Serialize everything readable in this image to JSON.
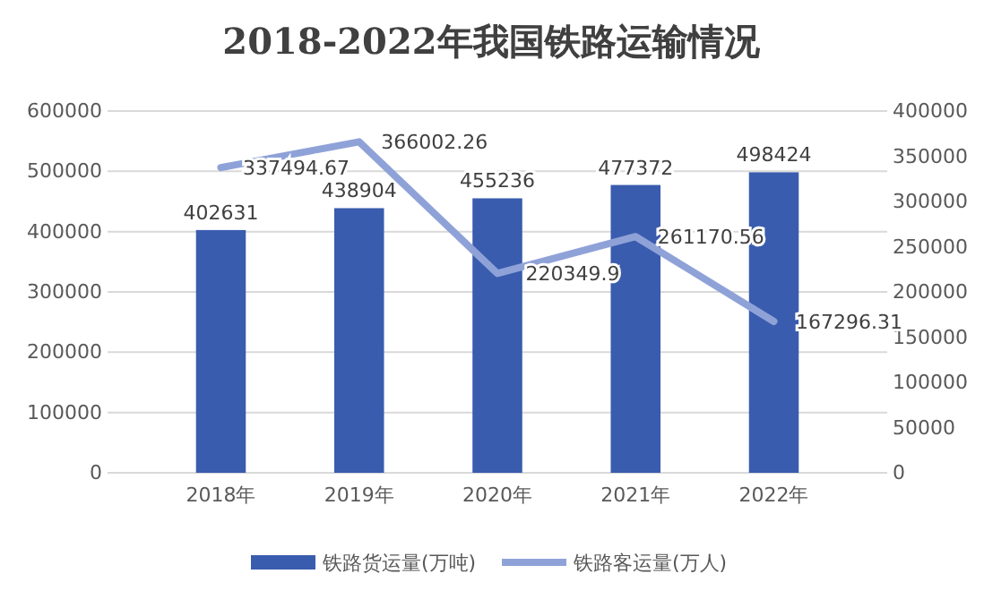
{
  "chart_data": {
    "type": "bar",
    "title": "2018-2022年我国铁路运输情况",
    "categories": [
      "2018年",
      "2019年",
      "2020年",
      "2021年",
      "2022年"
    ],
    "series": [
      {
        "name": "铁路货运量(万吨)",
        "color": "#3a5cae",
        "values": [
          402631,
          438904,
          455236,
          477372,
          498424
        ]
      },
      {
        "name": "铁路客运量(万人)",
        "type": "line",
        "axis": "y2",
        "color": "#8fa2d8",
        "values": [
          337494.67,
          366002.26,
          220349.9,
          261170.56,
          167296.31
        ]
      }
    ],
    "ylim": [
      0,
      600000
    ],
    "yticks": [
      0,
      100000,
      200000,
      300000,
      400000,
      500000,
      600000
    ],
    "y2lim": [
      0,
      400000
    ],
    "y2ticks": [
      0,
      50000,
      100000,
      150000,
      200000,
      250000,
      300000,
      350000,
      400000
    ],
    "grid": "y",
    "legend": "bottom",
    "data_labels": true,
    "marker": "none",
    "line_style": "solid"
  }
}
